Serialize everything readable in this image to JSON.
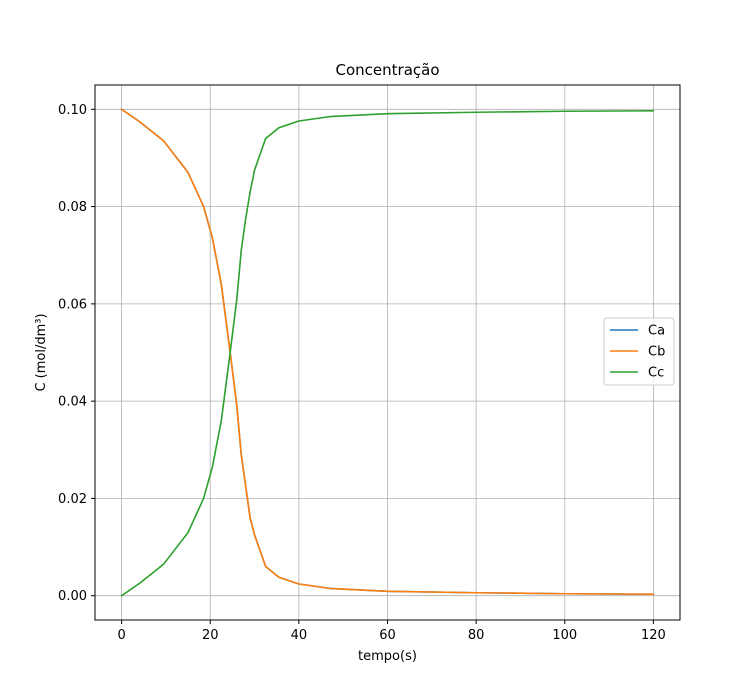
{
  "chart_data": {
    "type": "line",
    "title": "Concentração",
    "xlabel": "tempo(s)",
    "ylabel": "C (mol/dm³)",
    "xlim": [
      -6,
      126
    ],
    "ylim": [
      -0.005,
      0.105
    ],
    "xticks": [
      0,
      20,
      40,
      60,
      80,
      100,
      120
    ],
    "yticks": [
      0.0,
      0.02,
      0.04,
      0.06,
      0.08,
      0.1
    ],
    "xtick_labels": [
      "0",
      "20",
      "40",
      "60",
      "80",
      "100",
      "120"
    ],
    "ytick_labels": [
      "0.00",
      "0.02",
      "0.04",
      "0.06",
      "0.08",
      "0.10"
    ],
    "grid": true,
    "legend_position": "center-right",
    "series": [
      {
        "name": "Ca",
        "color": "#1f77b4",
        "x": [
          0,
          4,
          9.5,
          15,
          18.5,
          20.5,
          22.5,
          24.5,
          26,
          27,
          28,
          29,
          30,
          32.5,
          35.5,
          40,
          47,
          60,
          80,
          100,
          120
        ],
        "y": [
          0.1,
          0.0975,
          0.0935,
          0.087,
          0.08,
          0.0735,
          0.064,
          0.05,
          0.039,
          0.029,
          0.0225,
          0.016,
          0.0125,
          0.006,
          0.0038,
          0.0024,
          0.0015,
          0.0009,
          0.0006,
          0.0004,
          0.0003
        ]
      },
      {
        "name": "Cb",
        "color": "#ff7f0e",
        "x": [
          0,
          4,
          9.5,
          15,
          18.5,
          20.5,
          22.5,
          24.5,
          26,
          27,
          28,
          29,
          30,
          32.5,
          35.5,
          40,
          47,
          60,
          80,
          100,
          120
        ],
        "y": [
          0.1,
          0.0975,
          0.0935,
          0.087,
          0.08,
          0.0735,
          0.064,
          0.05,
          0.039,
          0.029,
          0.0225,
          0.016,
          0.0125,
          0.006,
          0.0038,
          0.0024,
          0.0015,
          0.0009,
          0.0006,
          0.0004,
          0.0003
        ]
      },
      {
        "name": "Cc",
        "color": "#2ca02c",
        "x": [
          0,
          4,
          9.5,
          15,
          18.5,
          20.5,
          22.5,
          24.5,
          26,
          27,
          28,
          29,
          30,
          32.5,
          35.5,
          40,
          47,
          60,
          80,
          100,
          120
        ],
        "y": [
          0.0,
          0.0025,
          0.0065,
          0.013,
          0.02,
          0.0265,
          0.036,
          0.05,
          0.061,
          0.071,
          0.0775,
          0.083,
          0.0875,
          0.094,
          0.0962,
          0.0976,
          0.0985,
          0.0991,
          0.0994,
          0.0996,
          0.0997
        ]
      }
    ]
  }
}
